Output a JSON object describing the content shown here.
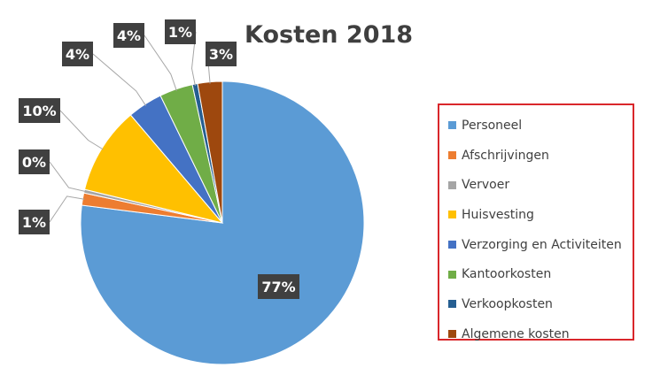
{
  "chart_data": {
    "type": "pie",
    "title": "Kosten 2018",
    "categories": [
      "Personeel",
      "Afschrijvingen",
      "Vervoer",
      "Huisvesting",
      "Verzorging en Activiteiten",
      "Kantoorkosten",
      "Verkoopkosten",
      "Algemene kosten"
    ],
    "values": [
      77,
      1.4,
      0.4,
      10,
      4,
      3.8,
      0.6,
      2.8
    ],
    "labels": [
      "77%",
      "1%",
      "0%",
      "10%",
      "4%",
      "4%",
      "1%",
      "3%"
    ],
    "colors": [
      "#5b9bd5",
      "#ed7d31",
      "#a5a5a5",
      "#ffc000",
      "#4472c4",
      "#70ad47",
      "#255e91",
      "#9e480e"
    ],
    "legend_position": "right"
  }
}
